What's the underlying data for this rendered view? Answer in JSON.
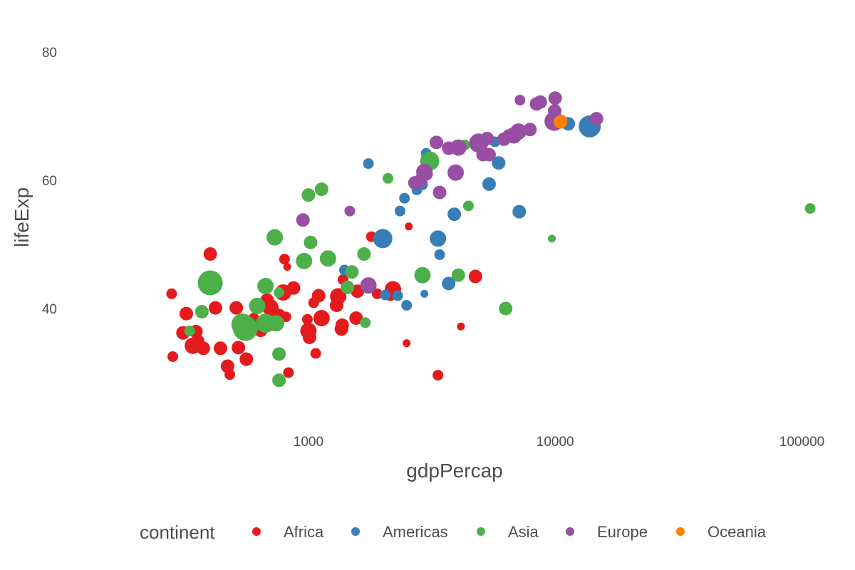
{
  "chart_data": {
    "type": "scatter",
    "title": "",
    "xlabel": "gdpPercap",
    "ylabel": "lifeExp",
    "x_scale": "log10",
    "xlim": [
      180,
      130000
    ],
    "ylim": [
      22,
      85
    ],
    "x_ticks": [
      1000,
      10000,
      100000
    ],
    "x_tick_labels": [
      "1000",
      "10000",
      "100000"
    ],
    "y_ticks": [
      40,
      60,
      80
    ],
    "y_tick_labels": [
      "40",
      "60",
      "80"
    ],
    "grid": false,
    "legend": {
      "title": "continent",
      "placement": "bottom",
      "entries": [
        {
          "label": "Africa",
          "color": "#E41A1C"
        },
        {
          "label": "Americas",
          "color": "#377EB8"
        },
        {
          "label": "Asia",
          "color": "#4DAF4A"
        },
        {
          "label": "Europe",
          "color": "#984EA3"
        },
        {
          "label": "Oceania",
          "color": "#FF7F00"
        }
      ]
    },
    "size_by": "pop",
    "series": [
      {
        "name": "Africa",
        "color": "#E41A1C",
        "points": [
          {
            "x": 279,
            "y": 42.3,
            "s": 2
          },
          {
            "x": 282,
            "y": 32.5,
            "s": 2
          },
          {
            "x": 310,
            "y": 36.2,
            "s": 3
          },
          {
            "x": 320,
            "y": 39.2,
            "s": 3
          },
          {
            "x": 340,
            "y": 34.2,
            "s": 4
          },
          {
            "x": 350,
            "y": 36.4,
            "s": 3
          },
          {
            "x": 360,
            "y": 35.0,
            "s": 2
          },
          {
            "x": 375,
            "y": 33.8,
            "s": 3
          },
          {
            "x": 400,
            "y": 48.5,
            "s": 3
          },
          {
            "x": 420,
            "y": 40.1,
            "s": 3
          },
          {
            "x": 440,
            "y": 33.8,
            "s": 3
          },
          {
            "x": 470,
            "y": 31.0,
            "s": 3
          },
          {
            "x": 480,
            "y": 29.7,
            "s": 2
          },
          {
            "x": 510,
            "y": 40.1,
            "s": 3
          },
          {
            "x": 520,
            "y": 33.9,
            "s": 3
          },
          {
            "x": 560,
            "y": 32.1,
            "s": 3
          },
          {
            "x": 600,
            "y": 38.5,
            "s": 2
          },
          {
            "x": 640,
            "y": 36.6,
            "s": 3
          },
          {
            "x": 680,
            "y": 41.3,
            "s": 3
          },
          {
            "x": 700,
            "y": 40.2,
            "s": 4
          },
          {
            "x": 720,
            "y": 39.4,
            "s": 3
          },
          {
            "x": 730,
            "y": 37.5,
            "s": 3
          },
          {
            "x": 760,
            "y": 38.9,
            "s": 3
          },
          {
            "x": 790,
            "y": 42.5,
            "s": 4
          },
          {
            "x": 800,
            "y": 47.7,
            "s": 2
          },
          {
            "x": 810,
            "y": 38.7,
            "s": 2
          },
          {
            "x": 820,
            "y": 46.5,
            "s": 1
          },
          {
            "x": 830,
            "y": 30.0,
            "s": 2
          },
          {
            "x": 870,
            "y": 43.2,
            "s": 3
          },
          {
            "x": 990,
            "y": 38.3,
            "s": 2
          },
          {
            "x": 1000,
            "y": 36.5,
            "s": 4
          },
          {
            "x": 1010,
            "y": 35.5,
            "s": 3
          },
          {
            "x": 1050,
            "y": 40.9,
            "s": 2
          },
          {
            "x": 1070,
            "y": 33.0,
            "s": 2
          },
          {
            "x": 1100,
            "y": 42.0,
            "s": 3
          },
          {
            "x": 1130,
            "y": 38.5,
            "s": 4
          },
          {
            "x": 1300,
            "y": 40.5,
            "s": 3
          },
          {
            "x": 1320,
            "y": 41.9,
            "s": 4
          },
          {
            "x": 1360,
            "y": 36.8,
            "s": 3
          },
          {
            "x": 1370,
            "y": 37.4,
            "s": 3
          },
          {
            "x": 1380,
            "y": 44.5,
            "s": 2
          },
          {
            "x": 1560,
            "y": 38.5,
            "s": 3
          },
          {
            "x": 1580,
            "y": 42.7,
            "s": 3
          },
          {
            "x": 1800,
            "y": 51.2,
            "s": 2
          },
          {
            "x": 1900,
            "y": 42.3,
            "s": 2
          },
          {
            "x": 2150,
            "y": 42.0,
            "s": 2
          },
          {
            "x": 2200,
            "y": 43.0,
            "s": 4
          },
          {
            "x": 2500,
            "y": 34.6,
            "s": 1
          },
          {
            "x": 2550,
            "y": 52.8,
            "s": 1
          },
          {
            "x": 3350,
            "y": 29.6,
            "s": 2
          },
          {
            "x": 4150,
            "y": 37.2,
            "s": 1
          },
          {
            "x": 4750,
            "y": 45.0,
            "s": 3
          }
        ]
      },
      {
        "name": "Americas",
        "color": "#377EB8",
        "points": [
          {
            "x": 1400,
            "y": 46.0,
            "s": 2
          },
          {
            "x": 1750,
            "y": 62.6,
            "s": 2
          },
          {
            "x": 2000,
            "y": 50.9,
            "s": 5
          },
          {
            "x": 2050,
            "y": 42.1,
            "s": 2
          },
          {
            "x": 2300,
            "y": 42.0,
            "s": 2
          },
          {
            "x": 2350,
            "y": 55.2,
            "s": 2
          },
          {
            "x": 2450,
            "y": 57.2,
            "s": 2
          },
          {
            "x": 2500,
            "y": 40.5,
            "s": 2
          },
          {
            "x": 2750,
            "y": 58.5,
            "s": 2
          },
          {
            "x": 2900,
            "y": 59.3,
            "s": 2
          },
          {
            "x": 2950,
            "y": 42.3,
            "s": 1
          },
          {
            "x": 3000,
            "y": 64.2,
            "s": 2
          },
          {
            "x": 3350,
            "y": 50.9,
            "s": 4
          },
          {
            "x": 3400,
            "y": 48.4,
            "s": 2
          },
          {
            "x": 3700,
            "y": 43.9,
            "s": 3
          },
          {
            "x": 3900,
            "y": 54.7,
            "s": 3
          },
          {
            "x": 5400,
            "y": 59.4,
            "s": 3
          },
          {
            "x": 5700,
            "y": 66.0,
            "s": 2
          },
          {
            "x": 5900,
            "y": 62.7,
            "s": 3
          },
          {
            "x": 7150,
            "y": 55.1,
            "s": 3
          },
          {
            "x": 11300,
            "y": 68.8,
            "s": 3
          },
          {
            "x": 13800,
            "y": 68.4,
            "s": 6
          }
        ]
      },
      {
        "name": "Asia",
        "color": "#4DAF4A",
        "points": [
          {
            "x": 330,
            "y": 36.5,
            "s": 2
          },
          {
            "x": 370,
            "y": 39.5,
            "s": 3
          },
          {
            "x": 400,
            "y": 44.0,
            "s": 7
          },
          {
            "x": 540,
            "y": 37.5,
            "s": 6
          },
          {
            "x": 555,
            "y": 36.9,
            "s": 7
          },
          {
            "x": 620,
            "y": 40.4,
            "s": 4
          },
          {
            "x": 670,
            "y": 37.7,
            "s": 5
          },
          {
            "x": 670,
            "y": 43.5,
            "s": 4
          },
          {
            "x": 730,
            "y": 51.1,
            "s": 4
          },
          {
            "x": 740,
            "y": 37.7,
            "s": 4
          },
          {
            "x": 760,
            "y": 28.8,
            "s": 3
          },
          {
            "x": 760,
            "y": 42.5,
            "s": 2
          },
          {
            "x": 760,
            "y": 32.9,
            "s": 3
          },
          {
            "x": 960,
            "y": 47.4,
            "s": 4
          },
          {
            "x": 1000,
            "y": 57.7,
            "s": 3
          },
          {
            "x": 1020,
            "y": 50.3,
            "s": 3
          },
          {
            "x": 1130,
            "y": 58.6,
            "s": 3
          },
          {
            "x": 1200,
            "y": 47.8,
            "s": 4
          },
          {
            "x": 1440,
            "y": 43.3,
            "s": 3
          },
          {
            "x": 1500,
            "y": 45.7,
            "s": 3
          },
          {
            "x": 1680,
            "y": 48.5,
            "s": 3
          },
          {
            "x": 1700,
            "y": 37.8,
            "s": 2
          },
          {
            "x": 2100,
            "y": 60.3,
            "s": 2
          },
          {
            "x": 2900,
            "y": 45.2,
            "s": 4
          },
          {
            "x": 3100,
            "y": 63.0,
            "s": 5
          },
          {
            "x": 4050,
            "y": 45.2,
            "s": 3
          },
          {
            "x": 4300,
            "y": 65.5,
            "s": 2
          },
          {
            "x": 4450,
            "y": 56.0,
            "s": 2
          },
          {
            "x": 6300,
            "y": 40.0,
            "s": 3
          },
          {
            "x": 9700,
            "y": 50.9,
            "s": 1
          },
          {
            "x": 108000,
            "y": 55.6,
            "s": 2
          }
        ]
      },
      {
        "name": "Europe",
        "color": "#984EA3",
        "points": [
          {
            "x": 950,
            "y": 53.8,
            "s": 3
          },
          {
            "x": 1470,
            "y": 55.2,
            "s": 2
          },
          {
            "x": 1750,
            "y": 43.6,
            "s": 4
          },
          {
            "x": 2700,
            "y": 59.6,
            "s": 3
          },
          {
            "x": 2850,
            "y": 60.0,
            "s": 3
          },
          {
            "x": 2950,
            "y": 61.3,
            "s": 4
          },
          {
            "x": 3000,
            "y": 61.0,
            "s": 3
          },
          {
            "x": 3300,
            "y": 65.9,
            "s": 3
          },
          {
            "x": 3400,
            "y": 58.1,
            "s": 3
          },
          {
            "x": 3700,
            "y": 65.0,
            "s": 3
          },
          {
            "x": 3950,
            "y": 61.2,
            "s": 4
          },
          {
            "x": 4050,
            "y": 65.1,
            "s": 4
          },
          {
            "x": 4900,
            "y": 65.8,
            "s": 5
          },
          {
            "x": 5100,
            "y": 64.0,
            "s": 3
          },
          {
            "x": 5300,
            "y": 66.5,
            "s": 3
          },
          {
            "x": 5400,
            "y": 64.0,
            "s": 3
          },
          {
            "x": 6200,
            "y": 66.4,
            "s": 3
          },
          {
            "x": 6500,
            "y": 66.9,
            "s": 3
          },
          {
            "x": 6800,
            "y": 67.0,
            "s": 4
          },
          {
            "x": 7100,
            "y": 67.6,
            "s": 4
          },
          {
            "x": 7200,
            "y": 72.5,
            "s": 2
          },
          {
            "x": 7900,
            "y": 67.9,
            "s": 3
          },
          {
            "x": 8400,
            "y": 71.9,
            "s": 3
          },
          {
            "x": 8700,
            "y": 72.2,
            "s": 3
          },
          {
            "x": 9900,
            "y": 69.2,
            "s": 5
          },
          {
            "x": 9950,
            "y": 70.8,
            "s": 3
          },
          {
            "x": 10000,
            "y": 72.8,
            "s": 3
          },
          {
            "x": 14700,
            "y": 69.6,
            "s": 3
          }
        ]
      },
      {
        "name": "Oceania",
        "color": "#FF7F00",
        "points": [
          {
            "x": 10500,
            "y": 69.1,
            "s": 3
          },
          {
            "x": 10600,
            "y": 69.4,
            "s": 2
          }
        ]
      }
    ]
  }
}
